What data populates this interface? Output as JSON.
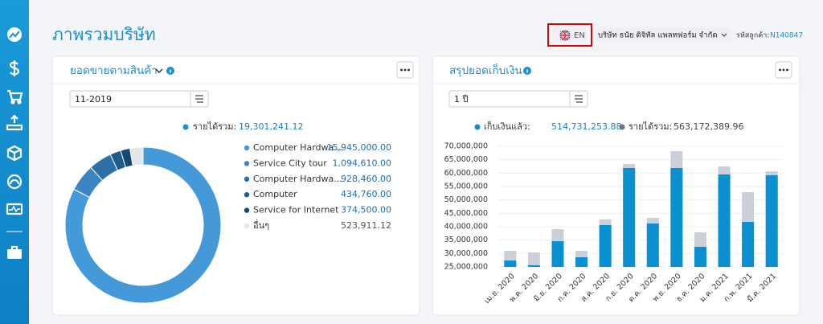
{
  "header": {
    "title": "ภาพรวมบริษัท",
    "language": "EN",
    "company": "บริษัท ธนัย ดิจิทัล แพลทฟอร์ม จำกัด",
    "customer_code_label": "รหัสลูกค้า:",
    "customer_code": "N140847"
  },
  "chart_data": [
    {
      "type": "pie",
      "title": "ยอดขายตามสินค้า",
      "filter": "11-2019",
      "total_label": "รายได้รวม:",
      "total_value": "19,301,241.12",
      "categories": [
        "Computer Hardwa...",
        "Service City tour",
        "Computer Hardwa...",
        "Computer",
        "Service for Internet",
        "อื่นๆ"
      ],
      "values": [
        15945000,
        1094610,
        928460,
        434760,
        374500,
        523911.12
      ],
      "value_labels": [
        "15,945,000.00",
        "1,094,610.00",
        "928,460.00",
        "434,760.00",
        "374,500.00",
        "523,911.12"
      ],
      "colors": [
        "#4499d9",
        "#3a85c2",
        "#2c70a8",
        "#1f5c8e",
        "#154876",
        "#e3e6ea"
      ]
    },
    {
      "type": "bar",
      "title": "สรุปยอดเก็บเงิน",
      "filter": "1 ปี",
      "categories": [
        "เม.ย. 2020",
        "พ.ค. 2020",
        "มิ.ย. 2020",
        "ก.ค. 2020",
        "ส.ค. 2020",
        "ก.ย. 2020",
        "ต.ค. 2020",
        "พ.ย. 2020",
        "ธ.ค. 2020",
        "ม.ค. 2021",
        "ก.พ. 2021",
        "มี.ค. 2021"
      ],
      "series": [
        {
          "name": "เก็บเงินแล้ว:",
          "total": "514,731,253.88",
          "color": "#0a8fd0",
          "values": [
            27400000,
            25600000,
            34600000,
            28600000,
            40600000,
            61900000,
            41200000,
            61900000,
            32500000,
            59500000,
            41800000,
            59200000
          ]
        },
        {
          "name": "รายได้รวม:",
          "total": "563,172,389.96",
          "color": "#cbd0d8",
          "values": [
            31000000,
            30400000,
            39100000,
            31000000,
            42700000,
            63400000,
            43300000,
            68200000,
            37900000,
            62500000,
            52900000,
            60700000
          ]
        }
      ],
      "ylim": [
        25000000,
        70000000
      ],
      "yticks": [
        {
          "value": 25000000,
          "label": "25,000,000"
        },
        {
          "value": 30000000,
          "label": "30,000,000"
        },
        {
          "value": 35000000,
          "label": "35,000,000"
        },
        {
          "value": 40000000,
          "label": "40,000,000"
        },
        {
          "value": 45000000,
          "label": "45,000,000"
        },
        {
          "value": 50000000,
          "label": "50,000,000"
        },
        {
          "value": 55000000,
          "label": "55,000,000"
        },
        {
          "value": 60000000,
          "label": "60,000,000"
        },
        {
          "value": 65000000,
          "label": "65,000,000"
        },
        {
          "value": 70000000,
          "label": "70,000,000"
        }
      ],
      "grid": true
    }
  ]
}
